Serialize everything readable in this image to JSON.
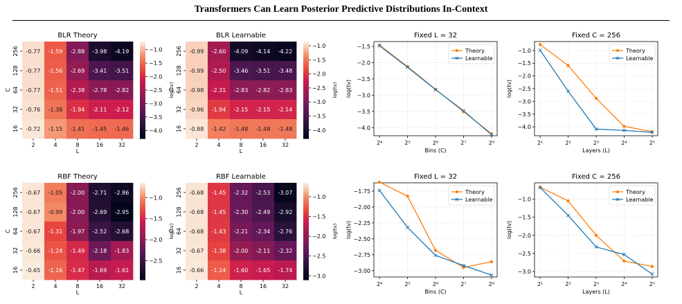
{
  "page_header": "Transformers Can Learn Posterior Predictive Distributions In-Context",
  "caption_fragment": "",
  "colors": {
    "theory": "#ff7f0e",
    "learnable": "#1f77b4",
    "colormap": "rocket"
  },
  "chart_data": [
    {
      "type": "heatmap",
      "title": "BLR Theory",
      "xlabel": "L",
      "ylabel": "C",
      "x": [
        "2",
        "4",
        "8",
        "16",
        "32"
      ],
      "y": [
        "256",
        "128",
        "64",
        "32",
        "16"
      ],
      "values": [
        [
          -0.77,
          -1.59,
          -2.88,
          -3.98,
          -4.19
        ],
        [
          -0.77,
          -1.56,
          -2.69,
          -3.41,
          -3.51
        ],
        [
          -0.77,
          -1.51,
          -2.38,
          -2.78,
          -2.82
        ],
        [
          -0.76,
          -1.38,
          -1.94,
          -2.11,
          -2.12
        ],
        [
          -0.72,
          -1.15,
          -1.41,
          -1.45,
          -1.46
        ]
      ],
      "colorbar": {
        "label": "log(tv)",
        "min": -4.3,
        "max": -0.7,
        "ticks": [
          -1.0,
          -1.5,
          -2.0,
          -2.5,
          -3.0,
          -3.5,
          -4.0
        ]
      }
    },
    {
      "type": "heatmap",
      "title": "BLR Learnable",
      "xlabel": "L",
      "ylabel": "C",
      "x": [
        "2",
        "4",
        "8",
        "16",
        "32"
      ],
      "y": [
        "256",
        "128",
        "64",
        "32",
        "16"
      ],
      "values": [
        [
          -0.99,
          -2.6,
          -4.09,
          -4.14,
          -4.22
        ],
        [
          -0.99,
          -2.5,
          -3.46,
          -3.51,
          -3.48
        ],
        [
          -0.98,
          -2.31,
          -2.83,
          -2.82,
          -2.83
        ],
        [
          -0.96,
          -1.94,
          -2.15,
          -2.15,
          -2.14
        ],
        [
          -0.88,
          -1.42,
          -1.48,
          -1.48,
          -1.48
        ]
      ],
      "colorbar": {
        "label": "log(tv)",
        "min": -4.3,
        "max": -0.85,
        "ticks": [
          -1.0,
          -1.5,
          -2.0,
          -2.5,
          -3.0,
          -3.5,
          -4.0
        ]
      }
    },
    {
      "type": "line",
      "title": "Fixed L = 32",
      "xlabel": "Bins (C)",
      "ylabel": "log(tv)",
      "x": [
        4,
        5,
        6,
        7,
        8
      ],
      "xtick_labels": [
        "2⁴",
        "2⁵",
        "2⁶",
        "2⁷",
        "2⁸"
      ],
      "ylim": [
        -4.25,
        -1.35
      ],
      "yticks": [
        -1.5,
        -2.0,
        -2.5,
        -3.0,
        -3.5,
        -4.0
      ],
      "ytick_labels": [
        "−1.5",
        "−2.0",
        "−2.5",
        "−3.0",
        "−3.5",
        "−4.0"
      ],
      "legend": "upper right",
      "grid": true,
      "series": [
        {
          "name": "Theory",
          "values": [
            -1.46,
            -2.12,
            -2.82,
            -3.51,
            -4.19
          ]
        },
        {
          "name": "Learnable",
          "values": [
            -1.48,
            -2.14,
            -2.83,
            -3.48,
            -4.22
          ]
        }
      ]
    },
    {
      "type": "line",
      "title": "Fixed C = 256",
      "xlabel": "Layers (L)",
      "ylabel": "log(tv)",
      "x": [
        1,
        2,
        3,
        4,
        5
      ],
      "xtick_labels": [
        "2¹",
        "2²",
        "2³",
        "2⁴",
        "2⁵"
      ],
      "ylim": [
        -4.35,
        -0.65
      ],
      "yticks": [
        -1.0,
        -1.5,
        -2.0,
        -2.5,
        -3.0,
        -3.5,
        -4.0
      ],
      "ytick_labels": [
        "−1.0",
        "−1.5",
        "−2.0",
        "−2.5",
        "−3.0",
        "−3.5",
        "−4.0"
      ],
      "legend": "upper right",
      "grid": true,
      "series": [
        {
          "name": "Theory",
          "values": [
            -0.77,
            -1.59,
            -2.88,
            -3.98,
            -4.19
          ]
        },
        {
          "name": "Learnable",
          "values": [
            -0.99,
            -2.6,
            -4.09,
            -4.14,
            -4.22
          ]
        }
      ]
    },
    {
      "type": "heatmap",
      "title": "RBF Theory",
      "xlabel": "L",
      "ylabel": "C",
      "x": [
        "2",
        "4",
        "8",
        "16",
        "32"
      ],
      "y": [
        "256",
        "128",
        "64",
        "32",
        "16"
      ],
      "values": [
        [
          -0.67,
          -1.05,
          -2.0,
          -2.71,
          -2.86
        ],
        [
          -0.67,
          -0.99,
          -2.0,
          -2.69,
          -2.95
        ],
        [
          -0.67,
          -1.31,
          -1.97,
          -2.52,
          -2.68
        ],
        [
          -0.66,
          -1.24,
          -1.49,
          -2.18,
          -1.83
        ],
        [
          -0.65,
          -1.16,
          -1.47,
          -1.69,
          -1.61
        ]
      ],
      "colorbar": {
        "label": "log(tv)",
        "min": -2.95,
        "max": -0.65,
        "ticks": [
          -1.0,
          -1.5,
          -2.0,
          -2.5
        ]
      }
    },
    {
      "type": "heatmap",
      "title": "RBF Learnable",
      "xlabel": "L",
      "ylabel": "C",
      "x": [
        "2",
        "4",
        "8",
        "16",
        "32"
      ],
      "y": [
        "256",
        "128",
        "64",
        "32",
        "16"
      ],
      "values": [
        [
          -0.68,
          -1.45,
          -2.32,
          -2.53,
          -3.07
        ],
        [
          -0.68,
          -1.45,
          -2.3,
          -2.49,
          -2.92
        ],
        [
          -0.68,
          -1.43,
          -2.21,
          -2.34,
          -2.76
        ],
        [
          -0.67,
          -1.38,
          -2.0,
          -2.11,
          -2.32
        ],
        [
          -0.66,
          -1.24,
          -1.6,
          -1.65,
          -1.74
        ]
      ],
      "colorbar": {
        "label": "log(tv)",
        "min": -3.1,
        "max": -0.65,
        "ticks": [
          -1.0,
          -1.5,
          -2.0,
          -2.5,
          -3.0
        ]
      }
    },
    {
      "type": "line",
      "title": "Fixed L = 32",
      "xlabel": "Bins (C)",
      "ylabel": "log(tv)",
      "x": [
        4,
        5,
        6,
        7,
        8
      ],
      "xtick_labels": [
        "2⁴",
        "2⁵",
        "2⁶",
        "2⁷",
        "2⁸"
      ],
      "ylim": [
        -3.1,
        -1.62
      ],
      "yticks": [
        -1.75,
        -2.0,
        -2.25,
        -2.5,
        -2.75,
        -3.0
      ],
      "ytick_labels": [
        "−1.75",
        "−2.00",
        "−2.25",
        "−2.50",
        "−2.75",
        "−3.00"
      ],
      "legend": "upper right",
      "grid": true,
      "series": [
        {
          "name": "Theory",
          "values": [
            -1.61,
            -1.83,
            -2.68,
            -2.95,
            -2.86
          ]
        },
        {
          "name": "Learnable",
          "values": [
            -1.74,
            -2.32,
            -2.76,
            -2.92,
            -3.07
          ]
        }
      ]
    },
    {
      "type": "line",
      "title": "Fixed C = 256",
      "xlabel": "Layers (L)",
      "ylabel": "log(tv)",
      "x": [
        1,
        2,
        3,
        4,
        5
      ],
      "xtick_labels": [
        "2¹",
        "2²",
        "2³",
        "2⁴",
        "2⁵"
      ],
      "ylim": [
        -3.15,
        -0.55
      ],
      "yticks": [
        -1.0,
        -1.5,
        -2.0,
        -2.5,
        -3.0
      ],
      "ytick_labels": [
        "−1.0",
        "−1.5",
        "−2.0",
        "−2.5",
        "−3.0"
      ],
      "legend": "upper right",
      "grid": true,
      "series": [
        {
          "name": "Theory",
          "values": [
            -0.67,
            -1.05,
            -2.0,
            -2.71,
            -2.86
          ]
        },
        {
          "name": "Learnable",
          "values": [
            -0.68,
            -1.45,
            -2.32,
            -2.53,
            -3.07
          ]
        }
      ]
    }
  ]
}
